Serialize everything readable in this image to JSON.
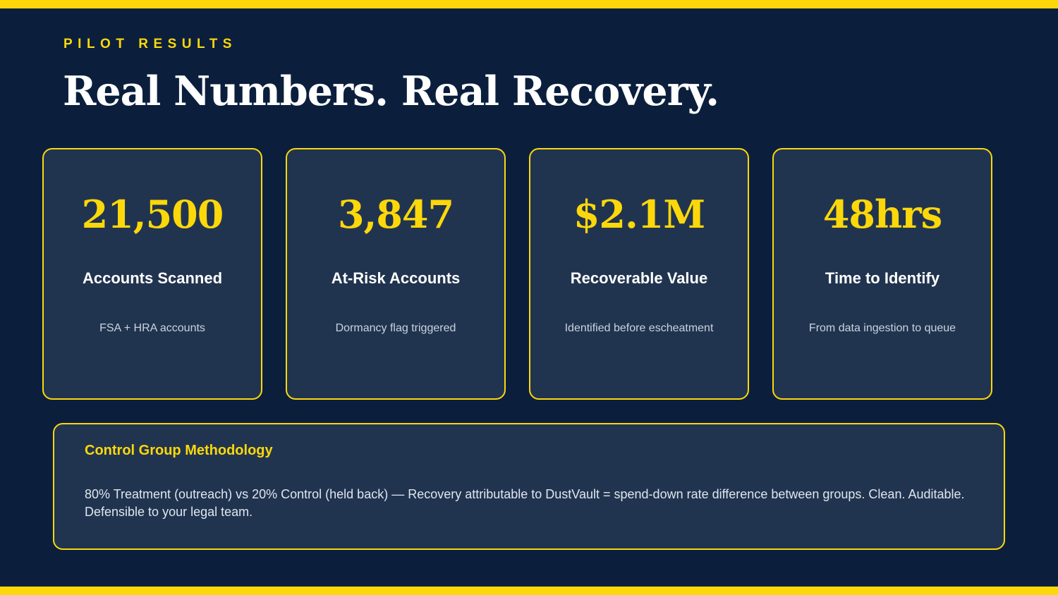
{
  "slide": {
    "eyebrow": "PILOT RESULTS",
    "title": "Real Numbers. Real Recovery."
  },
  "stats": [
    {
      "value": "21,500",
      "label": "Accounts Scanned",
      "sub": "FSA + HRA accounts"
    },
    {
      "value": "3,847",
      "label": "At-Risk Accounts",
      "sub": "Dormancy flag triggered"
    },
    {
      "value": "$2.1M",
      "label": "Recoverable Value",
      "sub": "Identified before escheatment"
    },
    {
      "value": "48hrs",
      "label": "Time to Identify",
      "sub": "From data ingestion to queue"
    }
  ],
  "methodology": {
    "heading": "Control Group Methodology",
    "body": "80% Treatment (outreach) vs 20% Control (held back) — Recovery attributable to DustVault = spend-down rate difference between groups. Clean. Auditable. Defensible to your legal team."
  },
  "colors": {
    "background": "#0b1f3d",
    "card": "#21344f",
    "accent": "#fcd80b",
    "text": "#ffffff",
    "muted": "#c9d3e0"
  }
}
